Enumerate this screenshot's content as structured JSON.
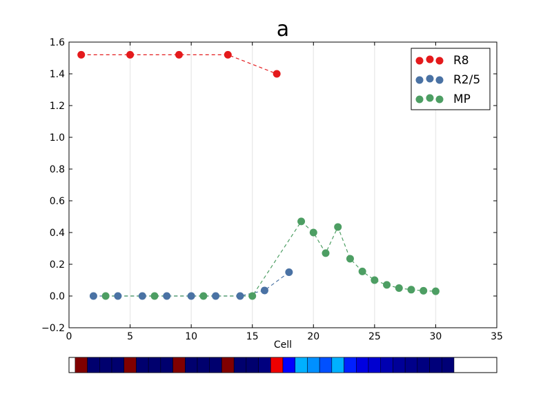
{
  "chart_data": {
    "type": "scatter",
    "title": "a",
    "xlabel": "Cell",
    "ylabel": "",
    "xlim": [
      0,
      35
    ],
    "ylim": [
      -0.2,
      1.6
    ],
    "xticks": [
      "0",
      "5",
      "10",
      "15",
      "20",
      "25",
      "30",
      "35"
    ],
    "yticks": [
      "−0.2",
      "0.0",
      "0.2",
      "0.4",
      "0.6",
      "0.8",
      "1.0",
      "1.2",
      "1.4",
      "1.6"
    ],
    "vertical_grid_at": [
      5,
      10,
      15,
      20,
      25,
      30
    ],
    "legend_position": "top-right",
    "series": [
      {
        "name": "R8",
        "color": "#e41a1c",
        "x": [
          1,
          5,
          9,
          13,
          17
        ],
        "y": [
          1.52,
          1.52,
          1.52,
          1.52,
          1.4
        ]
      },
      {
        "name": "R2/5",
        "color": "#4a72a4",
        "x": [
          2,
          4,
          6,
          8,
          10,
          12,
          14,
          16,
          18
        ],
        "y": [
          0.0,
          0.0,
          0.0,
          0.0,
          0.0,
          0.0,
          0.0,
          0.035,
          0.15
        ]
      },
      {
        "name": "MP",
        "color": "#4d9e63",
        "x": [
          3,
          7,
          11,
          15,
          19,
          20,
          21,
          22,
          23,
          24,
          25,
          26,
          27,
          28,
          29,
          30
        ],
        "y": [
          0.0,
          0.0,
          0.0,
          0.0,
          0.47,
          0.4,
          0.27,
          0.435,
          0.235,
          0.155,
          0.1,
          0.07,
          0.05,
          0.04,
          0.033,
          0.03
        ]
      }
    ],
    "color_strip": {
      "cells": [
        "#800000",
        "#00006e",
        "#00006e",
        "#00006e",
        "#800000",
        "#00006e",
        "#00006e",
        "#00006e",
        "#800000",
        "#00006e",
        "#00006e",
        "#00006e",
        "#800000",
        "#00006e",
        "#00006e",
        "#00007f",
        "#ee0000",
        "#0000ff",
        "#00b0ff",
        "#0090ff",
        "#0050ff",
        "#00b0ff",
        "#0020ff",
        "#0000e0",
        "#0000d0",
        "#0000b0",
        "#000098",
        "#00008a",
        "#000080",
        "#00007a",
        "#000076"
      ]
    }
  }
}
